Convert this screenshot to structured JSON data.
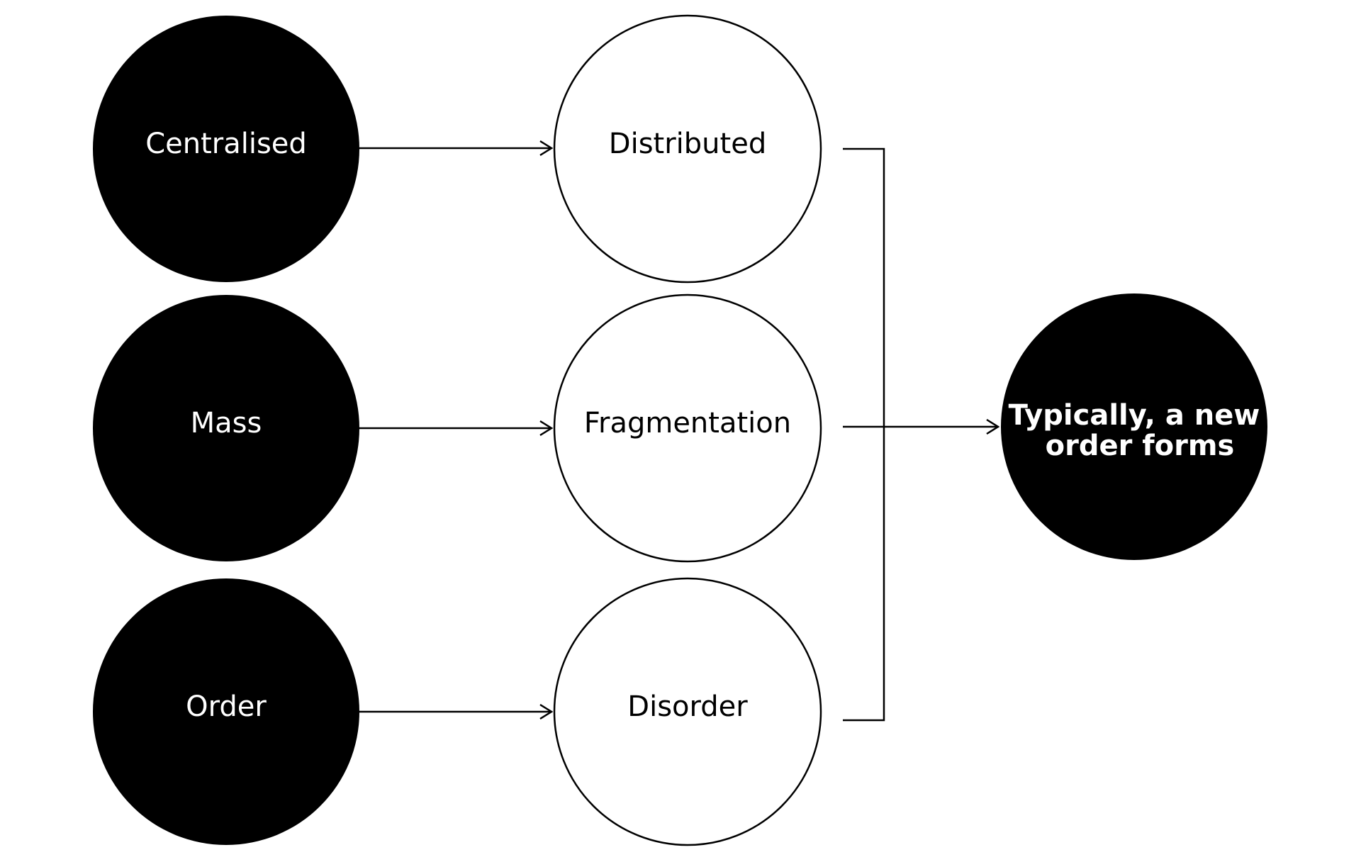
{
  "colors": {
    "dark_node": "#000000",
    "light_node": "#ffffff",
    "stroke": "#000000"
  },
  "sources": [
    {
      "label": "Centralised"
    },
    {
      "label": "Mass"
    },
    {
      "label": "Order"
    }
  ],
  "targets": [
    {
      "label": "Distributed"
    },
    {
      "label": "Fragmentation"
    },
    {
      "label": "Disorder"
    }
  ],
  "result": {
    "line1": "Typically, a new",
    "line2": "order forms"
  }
}
